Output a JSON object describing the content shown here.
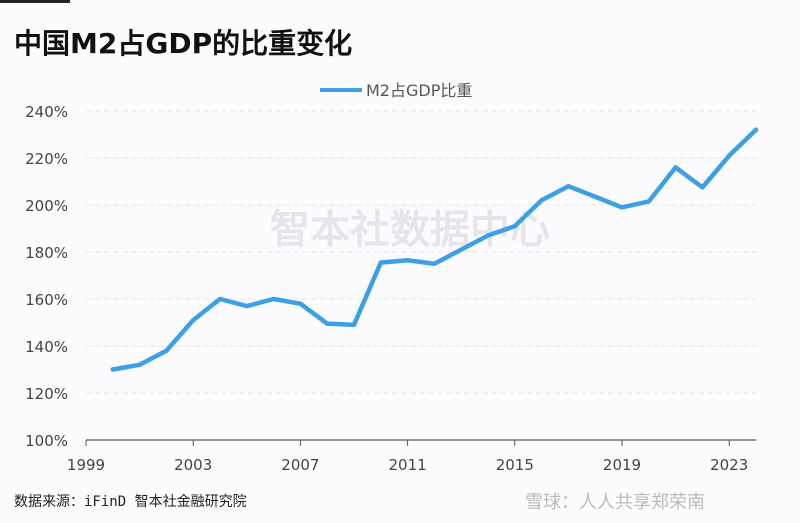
{
  "chart_data": {
    "type": "line",
    "title": "中国M2占GDP的比重变化",
    "xlabel": "",
    "ylabel": "",
    "xlim": [
      1999,
      2024
    ],
    "ylim": [
      100,
      240
    ],
    "x_ticks": [
      "1999",
      "2003",
      "2007",
      "2011",
      "2015",
      "2019",
      "2023"
    ],
    "y_ticks": [
      "100%",
      "120%",
      "140%",
      "160%",
      "180%",
      "200%",
      "220%",
      "240%"
    ],
    "grid": true,
    "legend": "top-center",
    "series": [
      {
        "name": "M2占GDP比重",
        "color": "#3d9fe6",
        "x": [
          2000,
          2001,
          2002,
          2003,
          2004,
          2005,
          2006,
          2007,
          2008,
          2009,
          2010,
          2011,
          2012,
          2013,
          2014,
          2015,
          2016,
          2017,
          2018,
          2019,
          2020,
          2021,
          2022,
          2023,
          2024
        ],
        "values": [
          130,
          132,
          138,
          151,
          160,
          157,
          160,
          158,
          149.5,
          149,
          175.5,
          176.5,
          175,
          181,
          187,
          191,
          202,
          208,
          203.5,
          199,
          201.5,
          216,
          207.5,
          221,
          232
        ]
      }
    ]
  },
  "watermark": "智本社数据中心",
  "source": "数据来源：iFinD 智本社金融研究院",
  "credit": "雪球：人人共享郑荣南"
}
